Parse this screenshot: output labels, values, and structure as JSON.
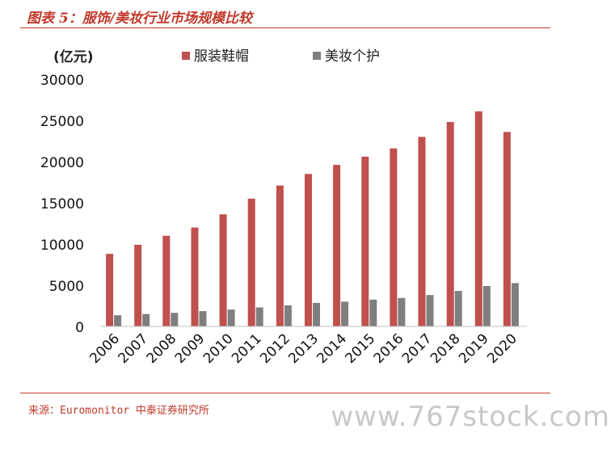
{
  "header": {
    "title": "图表 5：服饰/美妆行业市场规模比较"
  },
  "chart_data": {
    "type": "bar",
    "unit_label": "(亿元)",
    "categories": [
      "2006",
      "2007",
      "2008",
      "2009",
      "2010",
      "2011",
      "2012",
      "2013",
      "2014",
      "2015",
      "2016",
      "2017",
      "2018",
      "2019",
      "2020"
    ],
    "series": [
      {
        "name": "服装鞋帽",
        "color": "#c0504d",
        "values": [
          8800,
          9900,
          11000,
          12000,
          13600,
          15500,
          17100,
          18500,
          19600,
          20600,
          21600,
          23000,
          24800,
          26100,
          23600
        ]
      },
      {
        "name": "美妆个护",
        "color": "#7f7f7f",
        "values": [
          1350,
          1500,
          1650,
          1850,
          2050,
          2300,
          2550,
          2850,
          3000,
          3250,
          3450,
          3800,
          4300,
          4900,
          5250
        ]
      }
    ],
    "yticks": [
      "0",
      "5000",
      "10000",
      "15000",
      "20000",
      "25000",
      "30000"
    ],
    "ylim": [
      0,
      30000
    ],
    "grid": false,
    "legend_position": "top"
  },
  "footer": {
    "source": "来源：Euromonitor 中泰证券研究所"
  },
  "watermark": "www.767stock.com"
}
